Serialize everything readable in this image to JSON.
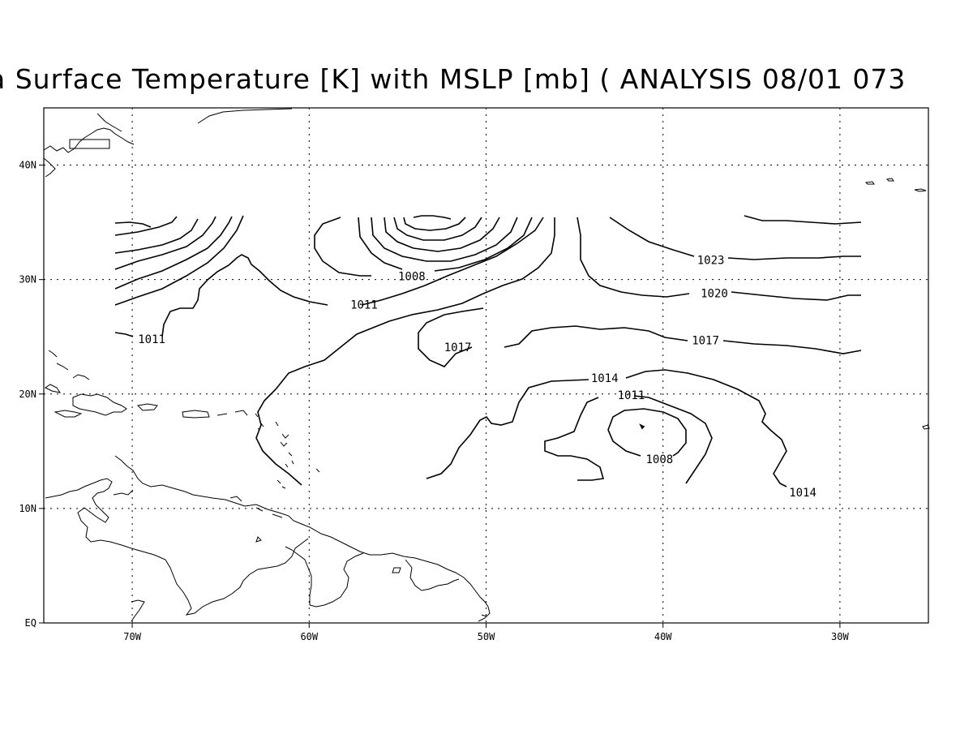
{
  "title": "a Surface Temperature [K] with MSLP [mb] ( ANALYSIS 08/01 073",
  "map": {
    "lon_range": [
      -75,
      -25
    ],
    "lat_range": [
      0,
      45
    ],
    "grid_lines": true,
    "lon_ticks": [
      {
        "value": -70,
        "label": "70W"
      },
      {
        "value": -60,
        "label": "60W"
      },
      {
        "value": -50,
        "label": "50W"
      },
      {
        "value": -40,
        "label": "40W"
      },
      {
        "value": -30,
        "label": "30W"
      }
    ],
    "lat_ticks": [
      {
        "value": 0,
        "label": "EQ"
      },
      {
        "value": 10,
        "label": "10N"
      },
      {
        "value": 20,
        "label": "20N"
      },
      {
        "value": 30,
        "label": "30N"
      },
      {
        "value": 40,
        "label": "40N"
      }
    ]
  },
  "contour_labels": [
    {
      "text": "1008",
      "lon": -54.2,
      "lat": 30.3
    },
    {
      "text": "1011",
      "lon": -56.9,
      "lat": 27.8
    },
    {
      "text": "1011",
      "lon": -68.9,
      "lat": 24.8
    },
    {
      "text": "1023",
      "lon": -37.3,
      "lat": 31.7
    },
    {
      "text": "1020",
      "lon": -37.1,
      "lat": 28.8
    },
    {
      "text": "1017",
      "lon": -37.6,
      "lat": 24.7
    },
    {
      "text": "1017",
      "lon": -51.6,
      "lat": 24.1
    },
    {
      "text": "1014",
      "lon": -43.3,
      "lat": 21.4
    },
    {
      "text": "1011",
      "lon": -41.8,
      "lat": 19.9
    },
    {
      "text": "1008",
      "lon": -40.2,
      "lat": 14.3
    },
    {
      "text": "1014",
      "lon": -32.1,
      "lat": 11.4
    }
  ]
}
